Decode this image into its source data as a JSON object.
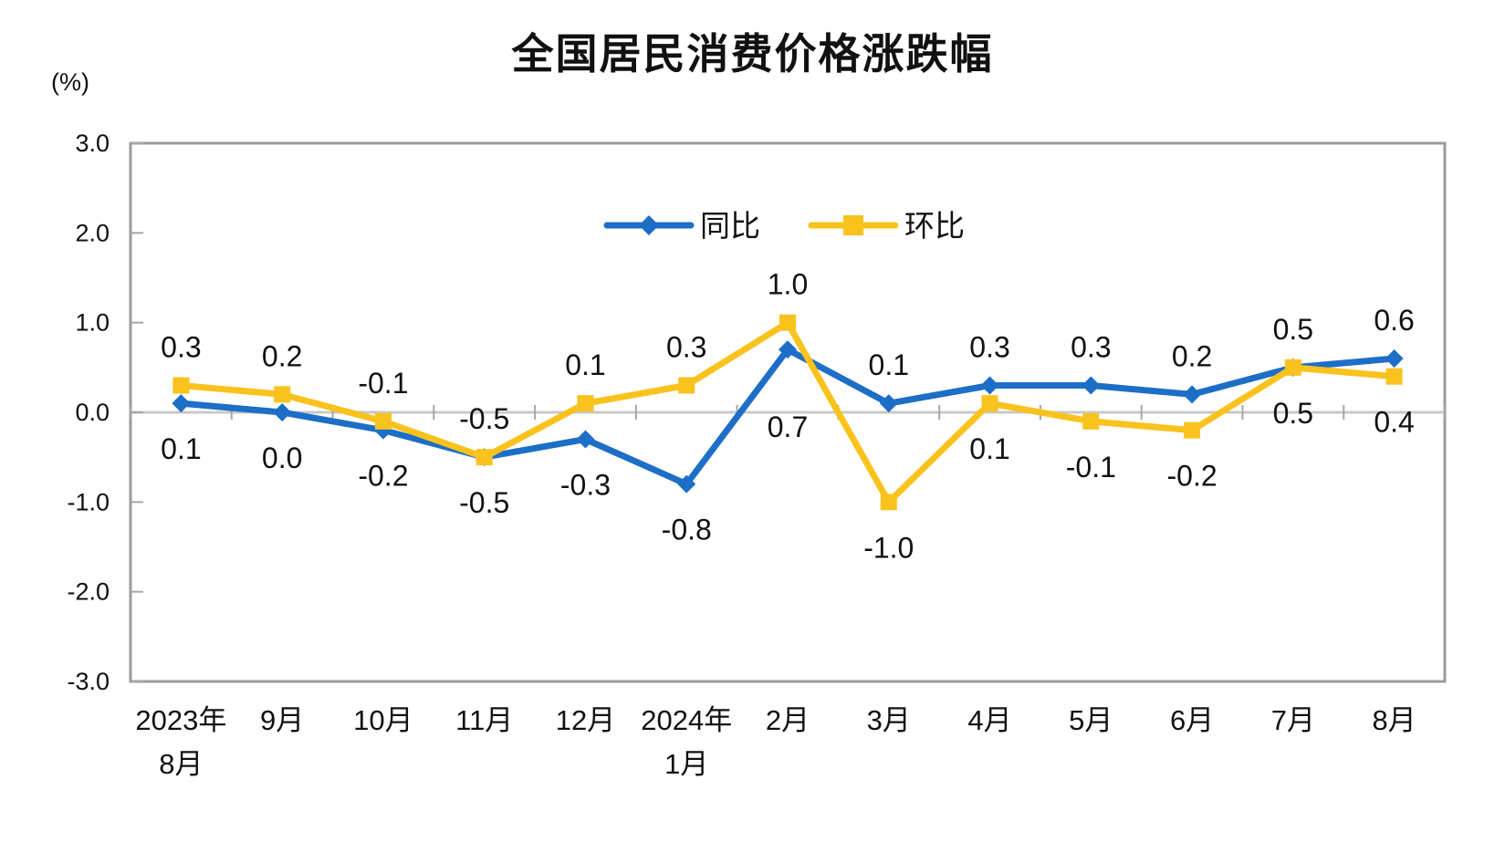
{
  "chart_data": {
    "type": "line",
    "title": "全国居民消费价格涨跌幅",
    "unit_label": "(%)",
    "categories": [
      "2023年\n8月",
      "9月",
      "10月",
      "11月",
      "12月",
      "2024年\n1月",
      "2月",
      "3月",
      "4月",
      "5月",
      "6月",
      "7月",
      "8月"
    ],
    "series": [
      {
        "id": "yoy",
        "name": "同比",
        "color": "#1D6EC7",
        "marker": "diamond",
        "values": [
          0.1,
          0.0,
          -0.2,
          -0.5,
          -0.3,
          -0.8,
          0.7,
          0.1,
          0.3,
          0.3,
          0.2,
          0.5,
          0.6
        ]
      },
      {
        "id": "mom",
        "name": "环比",
        "color": "#F9C21D",
        "marker": "square",
        "values": [
          0.3,
          0.2,
          -0.1,
          -0.5,
          0.1,
          0.3,
          1.0,
          -1.0,
          0.1,
          -0.1,
          -0.2,
          0.5,
          0.4
        ]
      }
    ],
    "ylim": [
      -3.0,
      3.0
    ],
    "ytick_step": 1.0,
    "ytick_labels": [
      "3.0",
      "2.0",
      "1.0",
      "0.0",
      "-1.0",
      "-2.0",
      "-3.0"
    ],
    "grid": "zero-line-only",
    "legend_position": "top-center-inside",
    "tie_above_series": "环比",
    "label_offsets": [
      {
        "series": "同比",
        "index": 6,
        "dy": 85
      }
    ]
  },
  "colors": {
    "axis_border": "#9B9B9B",
    "zero_line": "#C8C8C8",
    "tick": "#A6A6A6",
    "text": "#111111",
    "background": "#FFFFFF"
  }
}
